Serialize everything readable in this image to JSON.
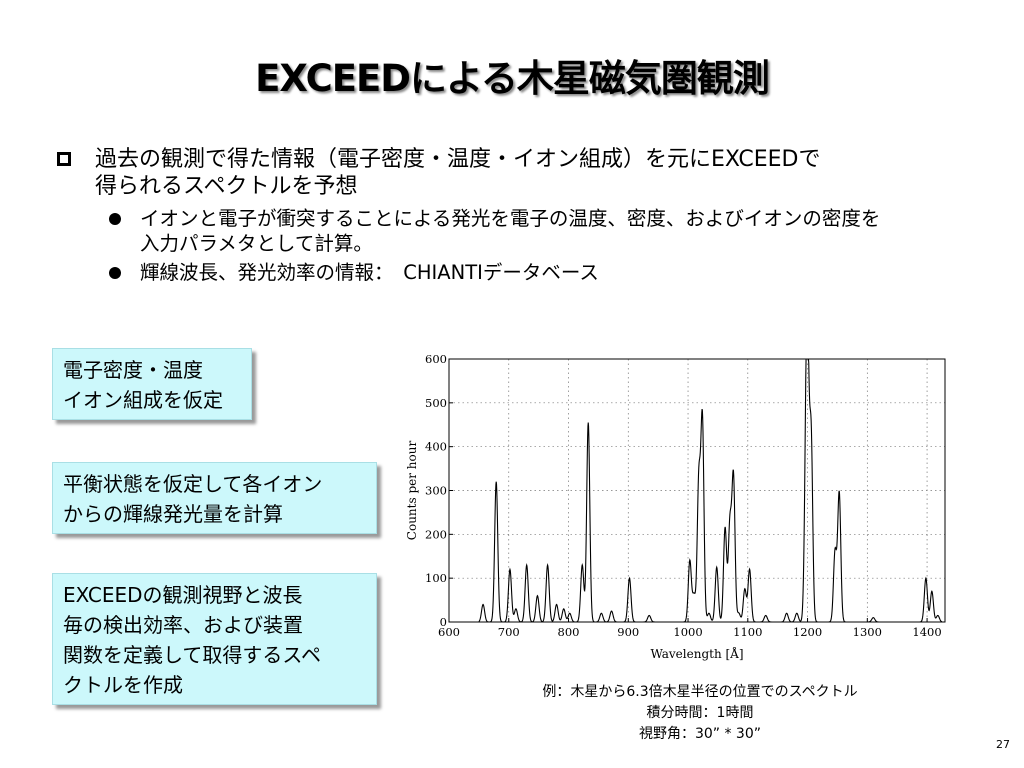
{
  "title": "EXCEEDによる木星磁気圏観測",
  "bullet1": {
    "line1": "過去の観測で得た情報（電子密度・温度・イオン組成）を元にEXCEEDで",
    "line2": "得られるスペクトルを予想"
  },
  "sub_bullets": [
    {
      "line1": "イオンと電子が衝突することによる発光を電子の温度、密度、およびイオンの密度を",
      "line2": "入力パラメタとして計算。"
    },
    {
      "line1": "輝線波長、発光効率の情報：　CHIANTIデータベース"
    }
  ],
  "boxes": [
    {
      "lines": [
        "電子密度・温度",
        "イオン組成を仮定"
      ]
    },
    {
      "lines": [
        "平衡状態を仮定して各イオン",
        "からの輝線発光量を計算"
      ]
    },
    {
      "lines": [
        "EXCEEDの観測視野と波長",
        "毎の検出効率、および装置",
        "関数を定義して取得するスペ",
        "クトルを作成"
      ]
    }
  ],
  "caption": {
    "line1": "例：木星から6.3倍木星半径の位置でのスペクトル",
    "line2": "積分時間：1時間",
    "line3": "視野角：30” * 30”"
  },
  "page_number": "27",
  "chart_data": {
    "type": "line",
    "xlabel": "Wavelength [Å]",
    "ylabel": "Counts per hour",
    "xlim": [
      600,
      1430
    ],
    "ylim": [
      0,
      600
    ],
    "x_ticks": [
      600,
      700,
      800,
      900,
      1000,
      1100,
      1200,
      1300,
      1400
    ],
    "y_ticks": [
      0,
      100,
      200,
      300,
      400,
      500,
      600
    ],
    "grid": true,
    "peaks": [
      {
        "x": 657,
        "y": 40
      },
      {
        "x": 679,
        "y": 320
      },
      {
        "x": 702,
        "y": 120
      },
      {
        "x": 712,
        "y": 30
      },
      {
        "x": 730,
        "y": 130
      },
      {
        "x": 748,
        "y": 60
      },
      {
        "x": 765,
        "y": 130
      },
      {
        "x": 780,
        "y": 40
      },
      {
        "x": 792,
        "y": 30
      },
      {
        "x": 802,
        "y": 20
      },
      {
        "x": 823,
        "y": 130
      },
      {
        "x": 833,
        "y": 455
      },
      {
        "x": 855,
        "y": 20
      },
      {
        "x": 872,
        "y": 25
      },
      {
        "x": 902,
        "y": 100
      },
      {
        "x": 935,
        "y": 15
      },
      {
        "x": 1003,
        "y": 140
      },
      {
        "x": 1010,
        "y": 60
      },
      {
        "x": 1018,
        "y": 320
      },
      {
        "x": 1024,
        "y": 460
      },
      {
        "x": 1035,
        "y": 20
      },
      {
        "x": 1048,
        "y": 125
      },
      {
        "x": 1062,
        "y": 215
      },
      {
        "x": 1070,
        "y": 220
      },
      {
        "x": 1076,
        "y": 330
      },
      {
        "x": 1085,
        "y": 20
      },
      {
        "x": 1095,
        "y": 75
      },
      {
        "x": 1103,
        "y": 120
      },
      {
        "x": 1130,
        "y": 15
      },
      {
        "x": 1165,
        "y": 20
      },
      {
        "x": 1182,
        "y": 20
      },
      {
        "x": 1197,
        "y": 265
      },
      {
        "x": 1200,
        "y": 565
      },
      {
        "x": 1206,
        "y": 420
      },
      {
        "x": 1246,
        "y": 160
      },
      {
        "x": 1253,
        "y": 295
      },
      {
        "x": 1310,
        "y": 10
      },
      {
        "x": 1398,
        "y": 100
      },
      {
        "x": 1408,
        "y": 70
      },
      {
        "x": 1418,
        "y": 15
      }
    ]
  }
}
